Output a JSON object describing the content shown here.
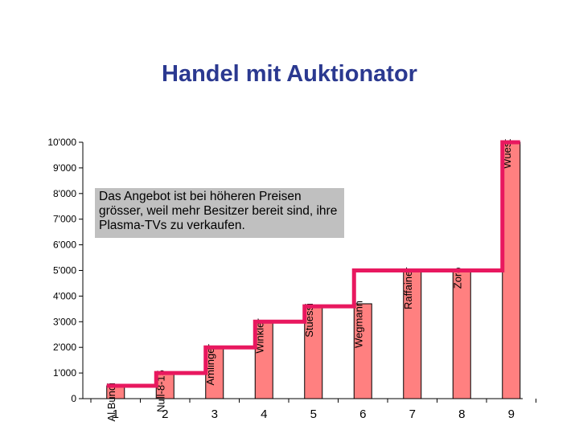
{
  "chart_data": {
    "type": "bar",
    "title": "Handel mit Auktionator",
    "categories": [
      "1",
      "2",
      "3",
      "4",
      "5",
      "6",
      "7",
      "8",
      "9"
    ],
    "values": [
      500,
      1000,
      2000,
      3000,
      3600,
      3700,
      5000,
      5000,
      10000
    ],
    "bar_labels": [
      "Al Bundi",
      "Null-8-15",
      "Amlinger",
      "Winkler",
      "Stuessi",
      "Wegmann",
      "Raffainer",
      "Zoro",
      "Wüest"
    ],
    "step_values": [
      500,
      1000,
      2000,
      3000,
      3600,
      5000,
      5000,
      5000,
      10000
    ],
    "y_ticks": [
      "0",
      "1'000",
      "2'000",
      "3'000",
      "4'000",
      "5'000",
      "6'000",
      "7'000",
      "8'000",
      "9'000",
      "10'000"
    ],
    "ylim": [
      0,
      10000
    ],
    "xlabel": "",
    "ylabel": "",
    "annotation": "Das Angebot ist bei höheren Preisen grösser, weil mehr Besitzer bereit sind, ihre Plasma-TVs zu verkaufen.",
    "grid": false,
    "colors": {
      "bar": "#ff8080",
      "step_line": "#e8185f",
      "title": "#2b3990",
      "annotation_bg": "#c0c0c0"
    }
  }
}
